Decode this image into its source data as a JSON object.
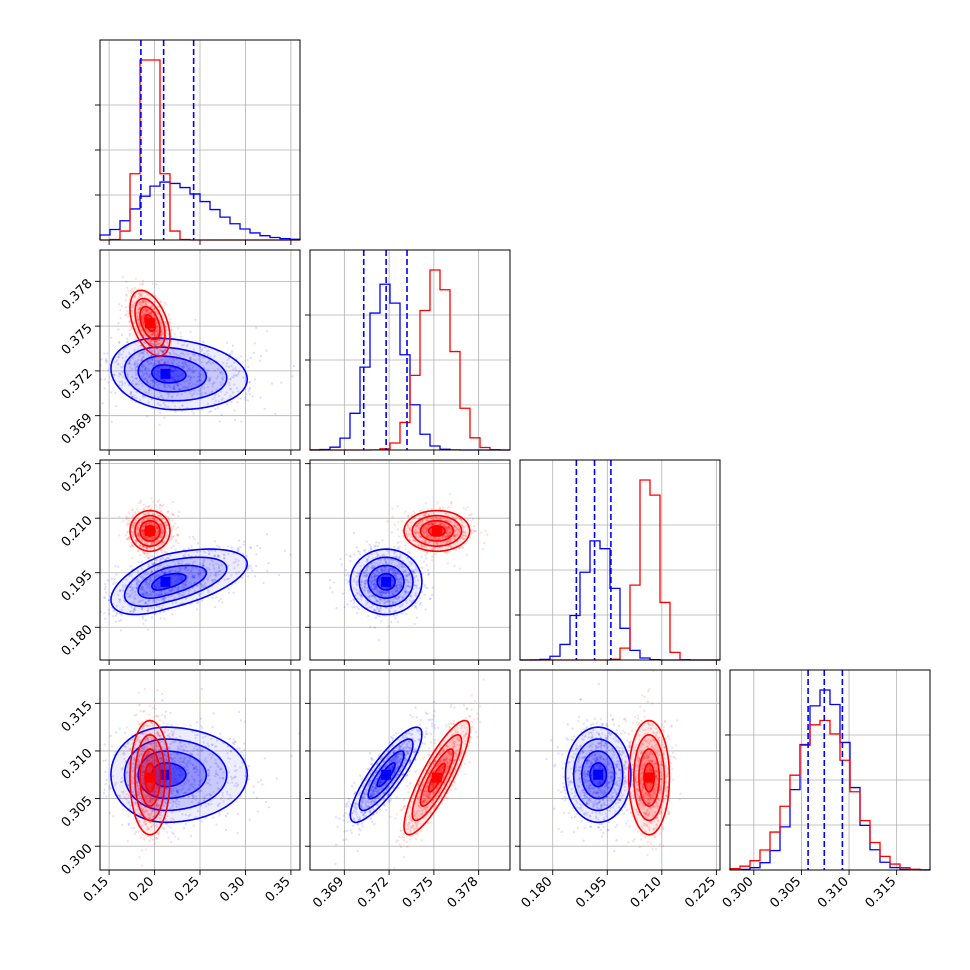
{
  "chart_data": {
    "type": "corner",
    "grid": true,
    "colors": {
      "blue": "#0000ff",
      "red": "#ff0000"
    },
    "parameters": [
      {
        "range": [
          0.14,
          0.36
        ],
        "ticks": [
          0.15,
          0.2,
          0.25,
          0.3,
          0.35
        ],
        "tick_labels": [
          "0.15",
          "0.20",
          "0.25",
          "0.30",
          "0.35"
        ]
      },
      {
        "range": [
          0.3667,
          0.3801
        ],
        "ticks": [
          0.369,
          0.372,
          0.375,
          0.378
        ],
        "tick_labels": [
          "0.369",
          "0.372",
          "0.375",
          "0.378"
        ]
      },
      {
        "range": [
          0.171,
          0.226
        ],
        "ticks": [
          0.18,
          0.195,
          0.21,
          0.225
        ],
        "tick_labels": [
          "0.180",
          "0.195",
          "0.210",
          "0.225"
        ]
      },
      {
        "range": [
          0.2975,
          0.3185
        ],
        "ticks": [
          0.3,
          0.305,
          0.31,
          0.315
        ],
        "tick_labels": [
          "0.300",
          "0.305",
          "0.310",
          "0.315"
        ]
      }
    ],
    "series": [
      {
        "color": "#0000ff",
        "means": [
          0.212,
          0.3718,
          0.1925,
          0.3075
        ],
        "stds": [
          0.03,
          0.0012,
          0.0045,
          0.0025
        ],
        "quantiles": [
          [
            0.185,
            0.21,
            0.243
          ],
          [
            0.3703,
            0.3718,
            0.3732
          ],
          [
            0.1865,
            0.1915,
            0.196
          ],
          [
            0.3057,
            0.3074,
            0.3093
          ]
        ],
        "correlations": {
          "1-0": -0.15,
          "2-0": 0.55,
          "2-1": 0.0,
          "3-0": 0.0,
          "3-1": 0.85,
          "3-2": 0.0
        }
      },
      {
        "color": "#ff0000",
        "means": [
          0.195,
          0.3752,
          0.2065,
          0.3072
        ],
        "stds": [
          0.011,
          0.0011,
          0.0028,
          0.003
        ],
        "quantiles": null,
        "correlations": {
          "1-0": -0.45,
          "2-0": 0.0,
          "2-1": 0.0,
          "3-0": 0.0,
          "3-1": 0.85,
          "3-2": 0.0
        }
      }
    ]
  }
}
